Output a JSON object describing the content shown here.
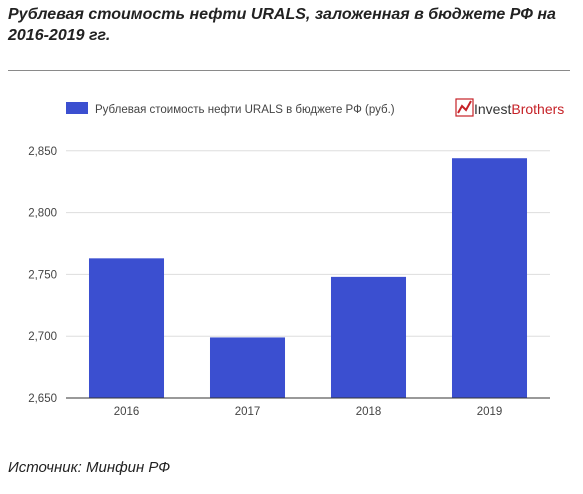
{
  "title": "Рублевая стоимость нефти URALS, заложенная в бюджете РФ на 2016-2019 гг.",
  "source": "Источник: Минфин РФ",
  "logo": {
    "text_a": "Invest",
    "text_b": "Brothers",
    "icon": "chart-arrow-icon",
    "color_a": "#333333",
    "color_b": "#c62127"
  },
  "colors": {
    "bar": "#3b4fd0",
    "grid": "#dddddd",
    "axis": "#333333"
  },
  "chart_data": {
    "type": "bar",
    "title": "",
    "xlabel": "",
    "ylabel": "",
    "categories": [
      "2016",
      "2017",
      "2018",
      "2019"
    ],
    "series": [
      {
        "name": "Рублевая стоимость нефти URALS в бюджете РФ (руб.)",
        "values": [
          2763,
          2699,
          2748,
          2844
        ]
      }
    ],
    "ylim": [
      2650,
      2900
    ],
    "yticks": [
      2650,
      2700,
      2750,
      2800,
      2850
    ],
    "ytick_labels": [
      "2,650",
      "2,700",
      "2,750",
      "2,800",
      "2,850"
    ],
    "grid": true,
    "legend": "top-left"
  }
}
